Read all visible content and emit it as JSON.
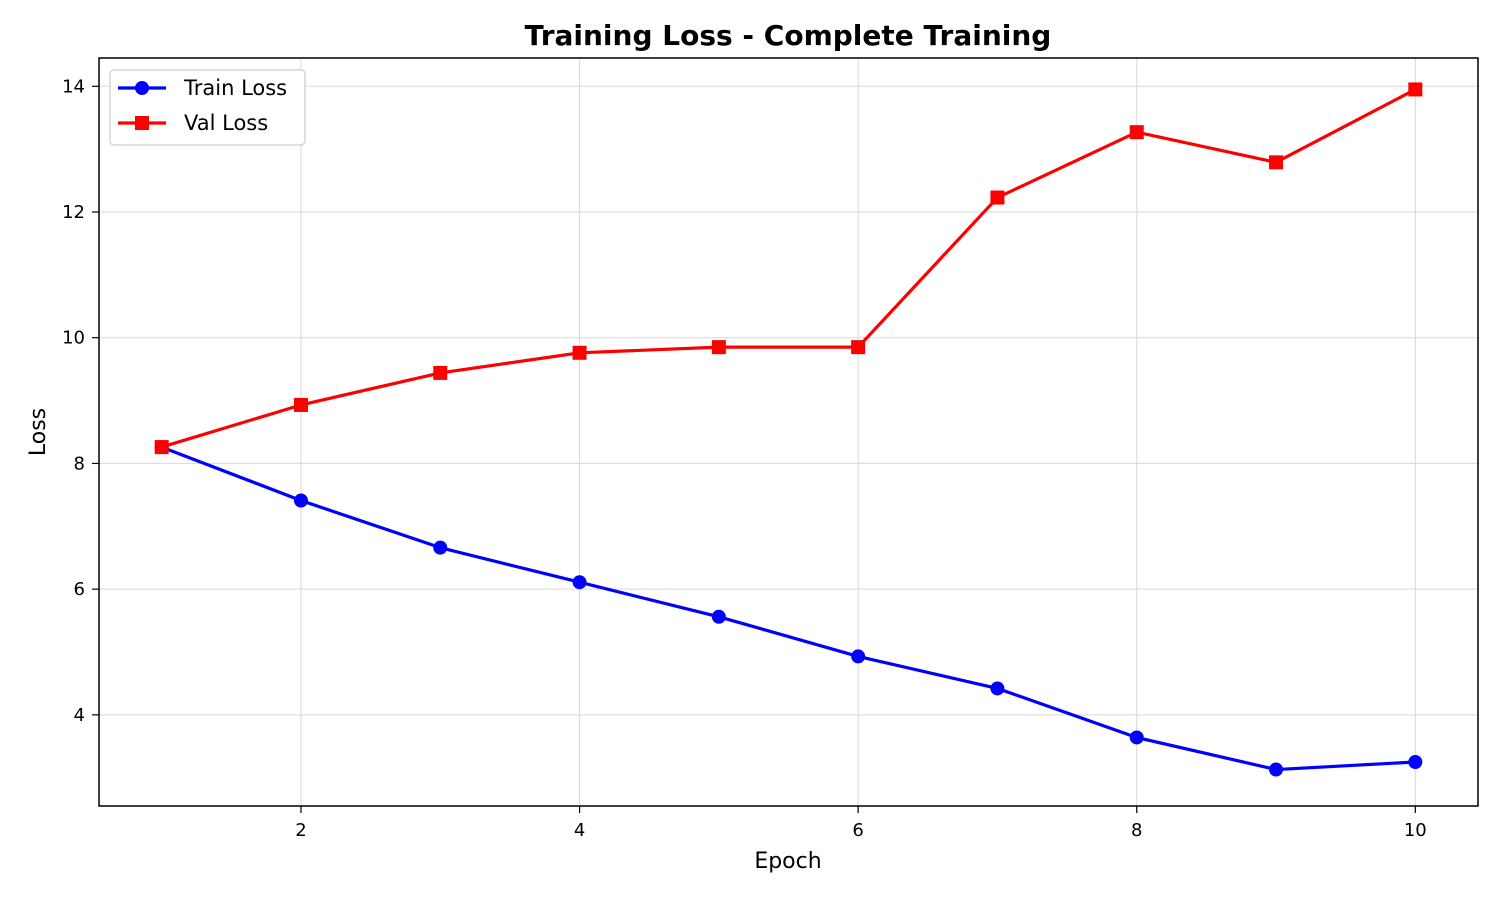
{
  "chart_data": {
    "type": "line",
    "title": "Training Loss - Complete Training",
    "xlabel": "Epoch",
    "ylabel": "Loss",
    "x": [
      1,
      2,
      3,
      4,
      5,
      6,
      7,
      8,
      9,
      10
    ],
    "xlim": [
      0.55,
      10.45
    ],
    "ylim": [
      2.55,
      14.45
    ],
    "xticks": [
      2,
      4,
      6,
      8,
      10
    ],
    "yticks": [
      4,
      6,
      8,
      10,
      12,
      14
    ],
    "grid": true,
    "legend_position": "top-left",
    "series": [
      {
        "name": "Train Loss",
        "color": "#0000ff",
        "marker": "circle",
        "values": [
          8.26,
          7.41,
          6.66,
          6.11,
          5.56,
          4.93,
          4.42,
          3.64,
          3.13,
          3.25
        ]
      },
      {
        "name": "Val Loss",
        "color": "#ff0000",
        "marker": "square",
        "values": [
          8.26,
          8.93,
          9.44,
          9.76,
          9.85,
          9.85,
          12.23,
          13.27,
          12.79,
          13.95
        ]
      }
    ]
  }
}
